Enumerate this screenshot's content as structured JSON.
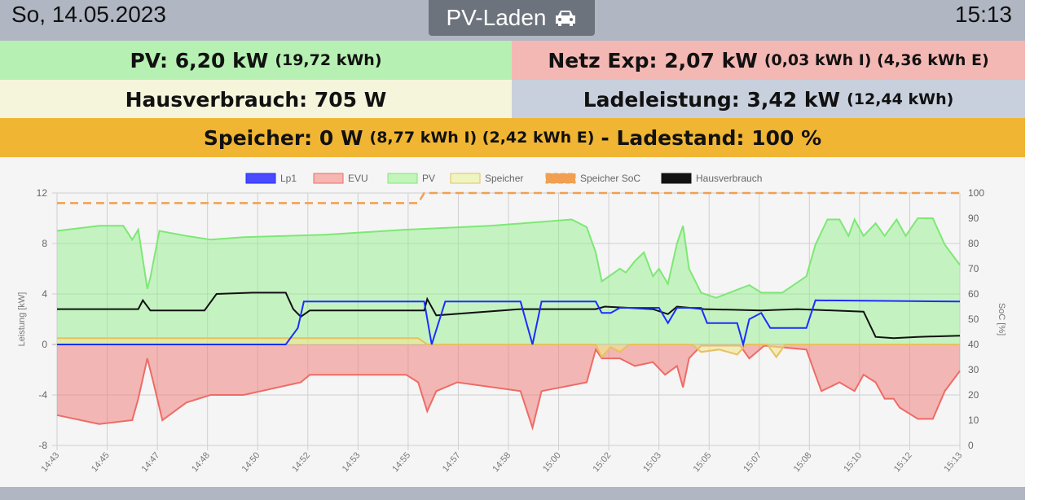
{
  "header": {
    "date": "So, 14.05.2023",
    "mode_label": "PV-Laden",
    "mode_icon": "car-icon",
    "time": "15:13"
  },
  "tiles": {
    "pv": {
      "main": "PV: 6,20 kW",
      "sub": "(19,72 kWh)"
    },
    "grid": {
      "main": "Netz Exp: 2,07 kW",
      "sub": "(0,03 kWh I) (4,36 kWh E)"
    },
    "house": {
      "main": "Hausverbrauch: 705 W"
    },
    "charge": {
      "main": "Ladeleistung: 3,42 kW",
      "sub": "(12,44 kWh)"
    },
    "storage": {
      "main": "Speicher: 0 W",
      "sub": "(8,77 kWh I) (2,42 kWh E)",
      "soc": "- Ladestand: 100 %"
    }
  },
  "colors": {
    "pv": "#b7f0b3",
    "grid": "#f4b8b4",
    "house": "#f5f5dc",
    "charge": "#c9d0dd",
    "storage": "#f0b533"
  },
  "chart_data": {
    "type": "area",
    "ylabel": "Leistung [kW]",
    "y2label": "SoC [%]",
    "ylim": [
      -8,
      12
    ],
    "yticks": [
      "12",
      "8",
      "4",
      "0",
      "-4",
      "-8"
    ],
    "y2lim": [
      0,
      100
    ],
    "y2ticks": [
      "100",
      "90",
      "80",
      "70",
      "60",
      "50",
      "40",
      "30",
      "20",
      "10",
      "0"
    ],
    "xlabels": [
      "14:43",
      "14:45",
      "14:47",
      "14:48",
      "14:50",
      "14:52",
      "14:53",
      "14:55",
      "14:57",
      "14:58",
      "15:00",
      "15:02",
      "15:03",
      "15:05",
      "15:07",
      "15:08",
      "15:10",
      "15:12",
      "15:13"
    ],
    "xrange_min": [
      0,
      30
    ],
    "legend": [
      "Lp1",
      "EVU",
      "PV",
      "Speicher",
      "Speicher SoC",
      "Hausverbrauch"
    ],
    "series": {
      "PV": [
        [
          0,
          9.0
        ],
        [
          1.4,
          9.4
        ],
        [
          2.2,
          9.4
        ],
        [
          2.5,
          8.3
        ],
        [
          2.7,
          9.1
        ],
        [
          3.0,
          4.4
        ],
        [
          3.1,
          5.3
        ],
        [
          3.4,
          9.0
        ],
        [
          4.3,
          8.6
        ],
        [
          5.1,
          8.3
        ],
        [
          6.2,
          8.5
        ],
        [
          8.9,
          8.7
        ],
        [
          11.6,
          9.1
        ],
        [
          14.4,
          9.4
        ],
        [
          17.1,
          9.9
        ],
        [
          17.6,
          9.3
        ],
        [
          17.9,
          7.3
        ],
        [
          18.1,
          5.0
        ],
        [
          18.7,
          6.0
        ],
        [
          18.9,
          5.7
        ],
        [
          19.2,
          6.6
        ],
        [
          19.5,
          7.3
        ],
        [
          19.8,
          5.4
        ],
        [
          20.0,
          6.0
        ],
        [
          20.3,
          4.8
        ],
        [
          20.6,
          8.0
        ],
        [
          20.8,
          9.4
        ],
        [
          21.0,
          6.0
        ],
        [
          21.4,
          4.1
        ],
        [
          21.9,
          3.7
        ],
        [
          23.0,
          4.7
        ],
        [
          23.4,
          4.1
        ],
        [
          24.1,
          4.1
        ],
        [
          24.9,
          5.4
        ],
        [
          25.2,
          7.9
        ],
        [
          25.6,
          9.9
        ],
        [
          26.0,
          9.9
        ],
        [
          26.3,
          8.6
        ],
        [
          26.5,
          9.9
        ],
        [
          26.8,
          8.6
        ],
        [
          27.2,
          9.6
        ],
        [
          27.5,
          8.6
        ],
        [
          27.9,
          9.9
        ],
        [
          28.2,
          8.6
        ],
        [
          28.6,
          10.0
        ],
        [
          29.1,
          10.0
        ],
        [
          29.5,
          7.9
        ],
        [
          30,
          6.3
        ]
      ],
      "EVU": [
        [
          0,
          -5.6
        ],
        [
          1.4,
          -6.3
        ],
        [
          2.5,
          -6.0
        ],
        [
          2.7,
          -4.3
        ],
        [
          3.0,
          -1.1
        ],
        [
          3.2,
          -3.0
        ],
        [
          3.5,
          -6.0
        ],
        [
          4.3,
          -4.6
        ],
        [
          5.1,
          -4.0
        ],
        [
          6.2,
          -4.0
        ],
        [
          8.1,
          -3.0
        ],
        [
          8.4,
          -2.4
        ],
        [
          11.6,
          -2.4
        ],
        [
          12.0,
          -3.0
        ],
        [
          12.3,
          -5.3
        ],
        [
          12.6,
          -3.7
        ],
        [
          13.3,
          -3.0
        ],
        [
          15.4,
          -3.7
        ],
        [
          15.8,
          -6.6
        ],
        [
          16.1,
          -3.7
        ],
        [
          17.6,
          -3.0
        ],
        [
          17.9,
          -0.4
        ],
        [
          18.1,
          -1.1
        ],
        [
          18.7,
          -1.1
        ],
        [
          19.2,
          -1.7
        ],
        [
          19.8,
          -1.4
        ],
        [
          20.2,
          -2.4
        ],
        [
          20.6,
          -1.7
        ],
        [
          20.8,
          -3.4
        ],
        [
          21.0,
          -1.1
        ],
        [
          21.4,
          -0.1
        ],
        [
          22.7,
          -0.1
        ],
        [
          23.0,
          -1.1
        ],
        [
          23.5,
          -0.1
        ],
        [
          24.9,
          -0.4
        ],
        [
          25.2,
          -2.4
        ],
        [
          25.4,
          -3.7
        ],
        [
          26.0,
          -3.0
        ],
        [
          26.5,
          -3.7
        ],
        [
          26.8,
          -2.4
        ],
        [
          27.2,
          -3.0
        ],
        [
          27.5,
          -4.3
        ],
        [
          27.8,
          -4.3
        ],
        [
          28.0,
          -5.0
        ],
        [
          28.6,
          -5.9
        ],
        [
          29.1,
          -5.9
        ],
        [
          29.5,
          -3.7
        ],
        [
          30,
          -2.1
        ]
      ],
      "Lp1": [
        [
          0,
          0
        ],
        [
          7.6,
          0
        ],
        [
          8.0,
          1.3
        ],
        [
          8.2,
          3.4
        ],
        [
          12.2,
          3.4
        ],
        [
          12.45,
          0
        ],
        [
          12.9,
          3.4
        ],
        [
          15.4,
          3.4
        ],
        [
          15.8,
          0
        ],
        [
          16.1,
          3.4
        ],
        [
          17.9,
          3.4
        ],
        [
          18.1,
          2.5
        ],
        [
          18.4,
          2.5
        ],
        [
          18.7,
          2.9
        ],
        [
          20.0,
          2.9
        ],
        [
          20.3,
          1.7
        ],
        [
          20.6,
          2.9
        ],
        [
          21.4,
          2.9
        ],
        [
          21.6,
          1.7
        ],
        [
          22.6,
          1.7
        ],
        [
          22.8,
          0
        ],
        [
          23.0,
          2.0
        ],
        [
          23.4,
          2.5
        ],
        [
          23.7,
          1.3
        ],
        [
          24.9,
          1.3
        ],
        [
          25.2,
          3.5
        ],
        [
          30,
          3.4
        ]
      ],
      "Hausverbrauch": [
        [
          0,
          2.8
        ],
        [
          2.7,
          2.8
        ],
        [
          2.85,
          3.5
        ],
        [
          3.1,
          2.7
        ],
        [
          4.9,
          2.7
        ],
        [
          5.3,
          4.0
        ],
        [
          6.5,
          4.1
        ],
        [
          7.6,
          4.1
        ],
        [
          7.85,
          2.8
        ],
        [
          8.1,
          2.2
        ],
        [
          8.4,
          2.7
        ],
        [
          12.2,
          2.7
        ],
        [
          12.3,
          3.6
        ],
        [
          12.6,
          2.3
        ],
        [
          15.4,
          2.8
        ],
        [
          17.9,
          2.8
        ],
        [
          18.2,
          3.0
        ],
        [
          19.8,
          2.8
        ],
        [
          20.3,
          2.4
        ],
        [
          20.6,
          3.0
        ],
        [
          21.5,
          2.8
        ],
        [
          23.4,
          2.7
        ],
        [
          24.6,
          2.8
        ],
        [
          26.8,
          2.6
        ],
        [
          27.2,
          0.6
        ],
        [
          27.8,
          0.5
        ],
        [
          28.6,
          0.6
        ],
        [
          30,
          0.7
        ]
      ],
      "Speicher": [
        [
          0,
          0.5
        ],
        [
          12.0,
          0.5
        ],
        [
          12.3,
          0
        ],
        [
          17.9,
          0
        ],
        [
          18.1,
          -1.0
        ],
        [
          18.4,
          -0.2
        ],
        [
          18.7,
          -0.6
        ],
        [
          19.0,
          0
        ],
        [
          21.1,
          0
        ],
        [
          21.4,
          -0.6
        ],
        [
          22.0,
          -0.4
        ],
        [
          22.6,
          -0.8
        ],
        [
          22.9,
          0
        ],
        [
          23.6,
          0
        ],
        [
          23.9,
          -1.0
        ],
        [
          24.2,
          0
        ],
        [
          30,
          0
        ]
      ],
      "Speicher SoC": [
        [
          0,
          96
        ],
        [
          12.0,
          96
        ],
        [
          12.2,
          100
        ],
        [
          30,
          100
        ]
      ]
    }
  }
}
